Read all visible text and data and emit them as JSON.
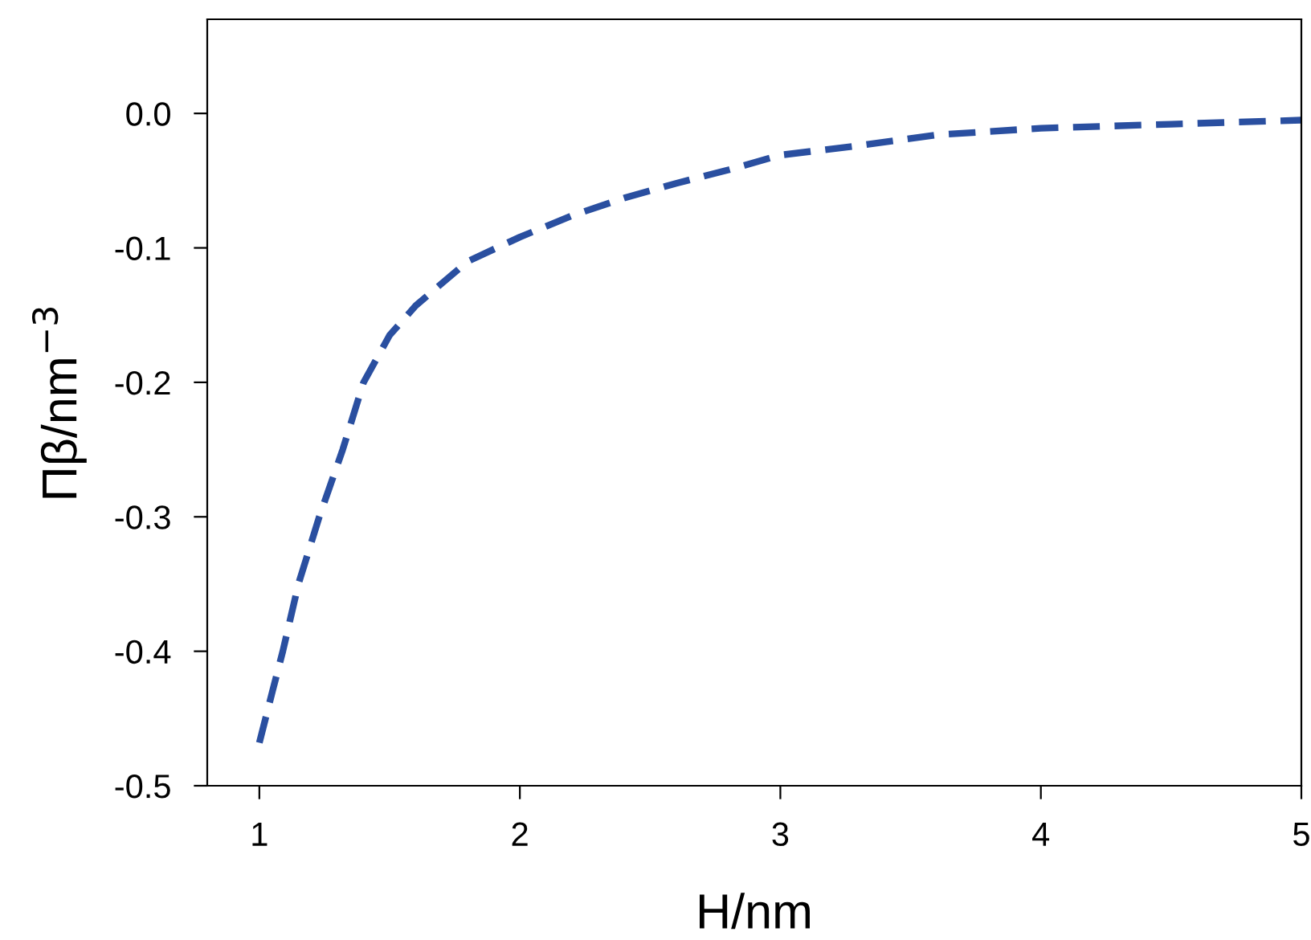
{
  "chart_data": {
    "type": "line",
    "xlabel": "H/nm",
    "ylabel": "Πβ/nm$^{−3}$",
    "series": [
      {
        "color": "#2a4fa0",
        "line_style": "dashed",
        "marker": "none",
        "x": [
          1.0,
          1.05,
          1.09,
          1.15,
          1.23,
          1.32,
          1.4,
          1.5,
          1.6,
          1.8,
          2.0,
          2.2,
          2.4,
          2.6,
          2.8,
          3.0,
          3.3,
          3.6,
          4.0,
          4.5,
          5.0
        ],
        "values": [
          -0.468,
          -0.43,
          -0.4,
          -0.35,
          -0.3,
          -0.25,
          -0.2,
          -0.165,
          -0.143,
          -0.11,
          -0.092,
          -0.076,
          -0.063,
          -0.052,
          -0.042,
          -0.031,
          -0.024,
          -0.016,
          -0.011,
          -0.008,
          -0.005
        ]
      }
    ],
    "xlim": [
      0.8,
      5
    ],
    "xticks": [
      1,
      2,
      3,
      4,
      5
    ],
    "ylim": [
      -0.5,
      0.07
    ],
    "yticks": [
      {
        "value": 0,
        "label": "0.0"
      },
      -0.1,
      -0.2,
      -0.3,
      -0.4,
      -0.5
    ],
    "grid": false,
    "legend": false
  }
}
